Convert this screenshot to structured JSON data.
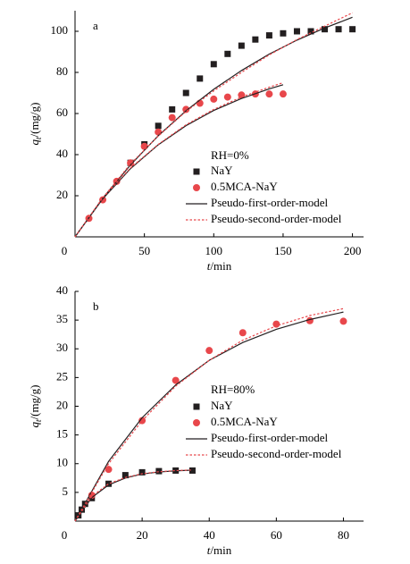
{
  "chart_data": [
    {
      "type": "line",
      "panel": "a",
      "annotation": "RH=0%",
      "xlabel": {
        "symbol": "t",
        "unit": "/min"
      },
      "ylabel": {
        "symbol": "q",
        "subscript": "t",
        "unit": "/(mg/g)"
      },
      "xlim": [
        0,
        208
      ],
      "ylim": [
        0,
        110
      ],
      "xticks": [
        0,
        50,
        100,
        150,
        200
      ],
      "yticks": [
        20,
        40,
        60,
        80,
        100
      ],
      "series": [
        {
          "name": "NaY",
          "color": "#231f20",
          "marker": "square",
          "x": [
            40,
            50,
            60,
            70,
            80,
            90,
            100,
            110,
            120,
            130,
            140,
            150,
            160,
            170,
            180,
            190,
            200
          ],
          "values": [
            36,
            45,
            54,
            62,
            70,
            77,
            84,
            89,
            93,
            96,
            98,
            99,
            100,
            100,
            101,
            101,
            101
          ]
        },
        {
          "name": "0.5MCA-NaY",
          "color": "#e8474b",
          "marker": "circle",
          "x": [
            10,
            20,
            30,
            40,
            50,
            60,
            70,
            80,
            90,
            100,
            110,
            120,
            130,
            140,
            150
          ],
          "values": [
            9,
            18,
            27,
            36,
            44,
            51,
            58,
            62,
            65,
            67,
            68,
            69,
            69.5,
            69.5,
            69.5
          ]
        },
        {
          "name": "Pseudo-first-order-model",
          "color": "#231f20",
          "line": "solid",
          "x": [
            0,
            20,
            40,
            60,
            80,
            100,
            120,
            140,
            160,
            180,
            200
          ],
          "values": [
            0,
            18.8,
            35,
            49.2,
            61.3,
            71.8,
            80.9,
            88.9,
            95.7,
            101.6,
            106.8
          ]
        },
        {
          "name": "Pseudo-second-order-model",
          "color": "#e8474b",
          "line": "dotted",
          "x": [
            0,
            20,
            40,
            60,
            80,
            100,
            120,
            140,
            160,
            180,
            200
          ],
          "values": [
            0,
            19,
            35.5,
            49,
            61,
            71,
            80,
            88.5,
            96,
            102.5,
            109
          ]
        },
        {
          "name": "Pseudo-first-order-model",
          "color": "#231f20",
          "line": "solid",
          "x": [
            0,
            20,
            40,
            60,
            80,
            100,
            120,
            140,
            150
          ],
          "values": [
            0,
            18.5,
            33.2,
            44.8,
            54.1,
            61.5,
            67.3,
            72,
            74
          ]
        },
        {
          "name": "Pseudo-second-order-model",
          "color": "#e8474b",
          "line": "dotted",
          "x": [
            0,
            20,
            40,
            60,
            80,
            100,
            120,
            140,
            150
          ],
          "values": [
            0,
            19,
            33.5,
            45,
            54.5,
            62,
            68,
            72.8,
            75
          ]
        }
      ]
    },
    {
      "type": "line",
      "panel": "b",
      "annotation": "RH=80%",
      "xlabel": {
        "symbol": "t",
        "unit": "/min"
      },
      "ylabel": {
        "symbol": "q",
        "subscript": "t",
        "unit": "/(mg/g)"
      },
      "xlim": [
        0,
        86
      ],
      "ylim": [
        0,
        40
      ],
      "xticks": [
        0,
        20,
        40,
        60,
        80
      ],
      "yticks": [
        5,
        10,
        15,
        20,
        25,
        30,
        35,
        40
      ],
      "series": [
        {
          "name": "NaY",
          "color": "#231f20",
          "marker": "square",
          "x": [
            1,
            2,
            3,
            5,
            10,
            15,
            20,
            25,
            30,
            35
          ],
          "values": [
            1,
            2,
            3,
            4,
            6.5,
            8,
            8.5,
            8.7,
            8.8,
            8.8
          ]
        },
        {
          "name": "0.5MCA-NaY",
          "color": "#e8474b",
          "marker": "circle",
          "x": [
            5,
            10,
            20,
            30,
            40,
            50,
            60,
            70,
            80
          ],
          "values": [
            4.5,
            9,
            17.5,
            24.5,
            29.7,
            32.8,
            34.3,
            34.9,
            34.8
          ]
        },
        {
          "name": "Pseudo-first-order-model",
          "color": "#231f20",
          "line": "solid",
          "x": [
            0,
            10,
            20,
            30,
            40,
            50,
            60,
            70,
            80
          ],
          "values": [
            0,
            10.4,
            18,
            23.7,
            28,
            31.1,
            33.4,
            35.1,
            36.4
          ]
        },
        {
          "name": "Pseudo-second-order-model",
          "color": "#e8474b",
          "line": "dotted",
          "x": [
            0,
            10,
            20,
            30,
            40,
            50,
            60,
            70,
            80
          ],
          "values": [
            0,
            10,
            17.5,
            23.5,
            28,
            31.5,
            34,
            35.8,
            37
          ]
        },
        {
          "name": "Pseudo-first-order-model",
          "color": "#231f20",
          "line": "solid",
          "x": [
            0,
            5,
            10,
            15,
            20,
            25,
            30,
            35
          ],
          "values": [
            0,
            4.1,
            6.3,
            7.5,
            8.2,
            8.55,
            8.75,
            8.87
          ]
        },
        {
          "name": "Pseudo-second-order-model",
          "color": "#e8474b",
          "line": "dotted",
          "x": [
            0,
            5,
            10,
            15,
            20,
            25,
            30,
            35
          ],
          "values": [
            0,
            4.3,
            6.5,
            7.6,
            8.25,
            8.6,
            8.8,
            8.9
          ]
        }
      ]
    }
  ]
}
